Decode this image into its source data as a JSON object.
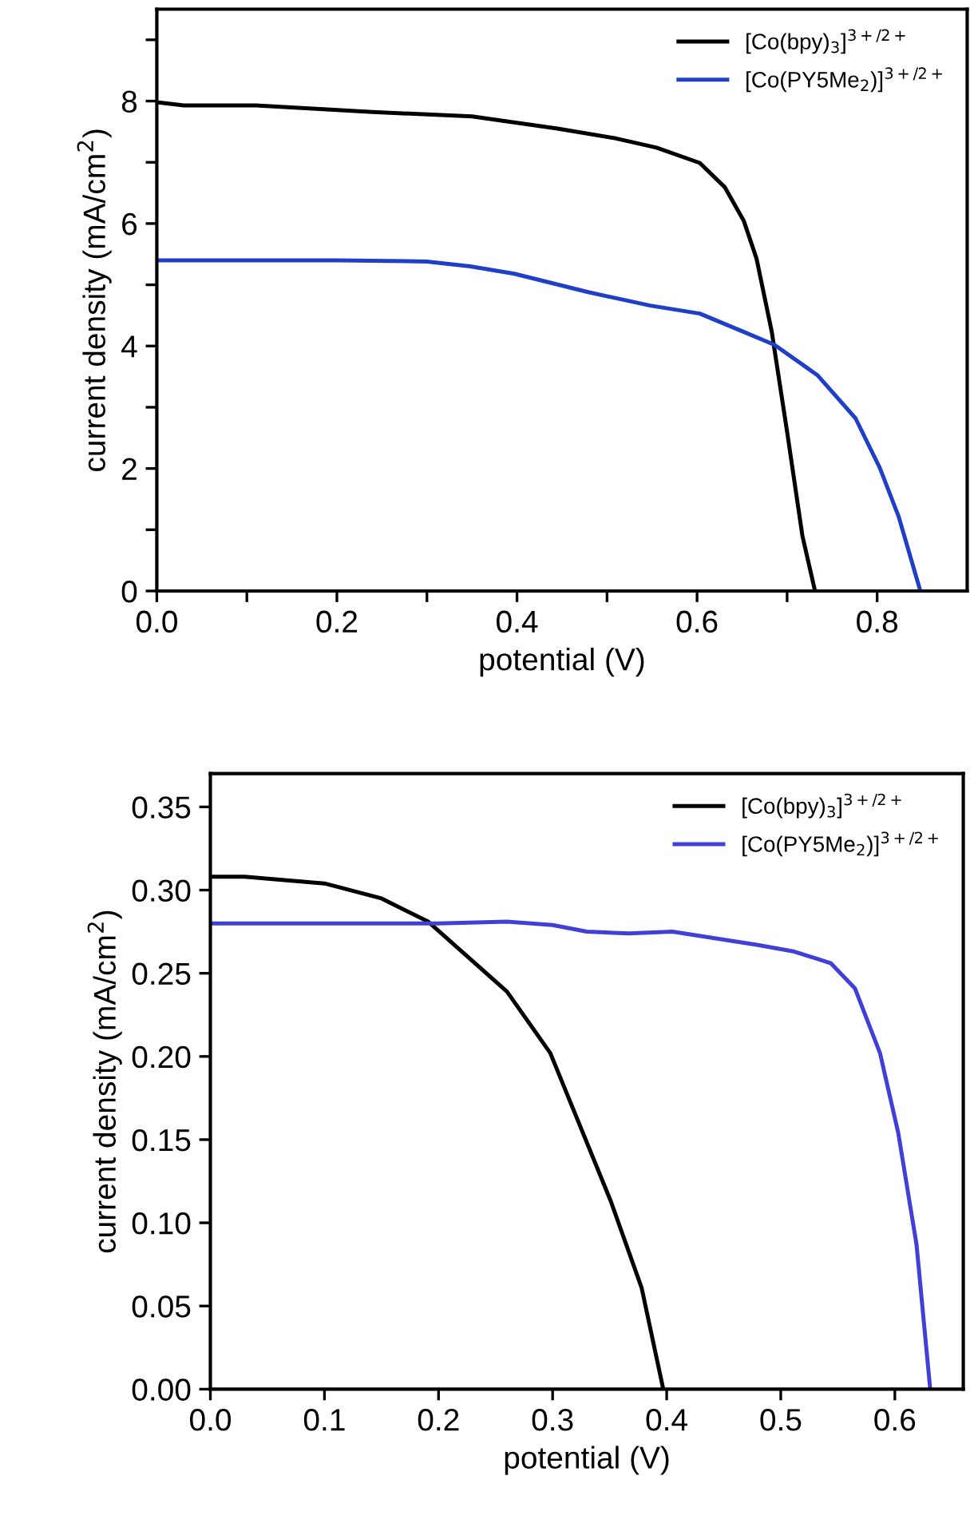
{
  "chart_data": [
    {
      "type": "line",
      "xlabel": "potential (V)",
      "ylabel": "current density (mA/cm$^{2}$)",
      "xlim": [
        0,
        0.9
      ],
      "ylim": [
        0,
        9.5
      ],
      "xticks": [
        {
          "value": 0,
          "label": "0.0"
        },
        {
          "value": 0.1,
          "label": null
        },
        {
          "value": 0.2,
          "label": "0.2"
        },
        {
          "value": 0.3,
          "label": null
        },
        {
          "value": 0.4,
          "label": "0.4"
        },
        {
          "value": 0.5,
          "label": null
        },
        {
          "value": 0.6,
          "label": "0.6"
        },
        {
          "value": 0.7,
          "label": null
        },
        {
          "value": 0.8,
          "label": "0.8"
        }
      ],
      "yticks": [
        0,
        {
          "value": 1,
          "label": null
        },
        2,
        {
          "value": 3,
          "label": null
        },
        4,
        {
          "value": 5,
          "label": null
        },
        6,
        {
          "value": 7,
          "label": null
        },
        8,
        {
          "value": 9,
          "label": null
        }
      ],
      "grid": false,
      "legend": "top right",
      "marker": "none",
      "line_style": "solid",
      "series": [
        {
          "name": "[Co(bpy)$_{3}$]$^{3+/2+}$",
          "color": "#000000",
          "x": [
            0,
            0.03,
            0.11,
            0.24,
            0.35,
            0.445,
            0.51,
            0.555,
            0.603,
            0.631,
            0.652,
            0.666,
            0.683,
            0.7,
            0.717,
            0.731
          ],
          "values": [
            7.98,
            7.93,
            7.93,
            7.82,
            7.75,
            7.55,
            7.39,
            7.24,
            6.99,
            6.59,
            6.04,
            5.43,
            4.23,
            2.6,
            0.9,
            0
          ]
        },
        {
          "name": "[Co(PY5Me$_{2}$)]$^{3+/2+}$",
          "color": "#1f3fc8",
          "x": [
            0,
            0.1,
            0.2,
            0.3,
            0.348,
            0.397,
            0.479,
            0.548,
            0.603,
            0.652,
            0.686,
            0.734,
            0.776,
            0.803,
            0.824,
            0.848
          ],
          "values": [
            5.4,
            5.4,
            5.4,
            5.38,
            5.3,
            5.18,
            4.88,
            4.66,
            4.53,
            4.23,
            4.02,
            3.52,
            2.82,
            2.01,
            1.21,
            0
          ]
        }
      ]
    },
    {
      "type": "line",
      "xlabel": "potential (V)",
      "ylabel": "current density (mA/cm$^{2}$)",
      "xlim": [
        0,
        0.66
      ],
      "ylim": [
        0,
        0.37
      ],
      "xticks": [
        {
          "value": 0,
          "label": "0.0"
        },
        0.1,
        0.2,
        0.3,
        0.4,
        0.5,
        0.6
      ],
      "yticks": [
        {
          "value": 0,
          "label": "0.00"
        },
        0.05,
        {
          "value": 0.1,
          "label": "0.10"
        },
        0.15,
        {
          "value": 0.2,
          "label": "0.20"
        },
        0.25,
        {
          "value": 0.3,
          "label": "0.30"
        },
        0.35
      ],
      "grid": false,
      "legend": "top right",
      "marker": "none",
      "line_style": "solid",
      "series": [
        {
          "name": "[Co(bpy)$_{3}$]$^{3+/2+}$",
          "color": "#000000",
          "x": [
            0,
            0.03,
            0.1,
            0.15,
            0.191,
            0.26,
            0.298,
            0.351,
            0.378,
            0.397
          ],
          "values": [
            0.308,
            0.308,
            0.304,
            0.295,
            0.281,
            0.239,
            0.202,
            0.113,
            0.061,
            0
          ]
        },
        {
          "name": "[Co(PY5Me$_{2}$)]$^{3+/2+}$",
          "color": "#4040d8",
          "x": [
            0,
            0.1,
            0.2,
            0.26,
            0.3,
            0.33,
            0.367,
            0.405,
            0.48,
            0.512,
            0.544,
            0.565,
            0.587,
            0.603,
            0.619,
            0.631
          ],
          "values": [
            0.28,
            0.28,
            0.28,
            0.281,
            0.279,
            0.275,
            0.274,
            0.275,
            0.267,
            0.263,
            0.256,
            0.241,
            0.202,
            0.154,
            0.087,
            0
          ]
        }
      ]
    }
  ]
}
